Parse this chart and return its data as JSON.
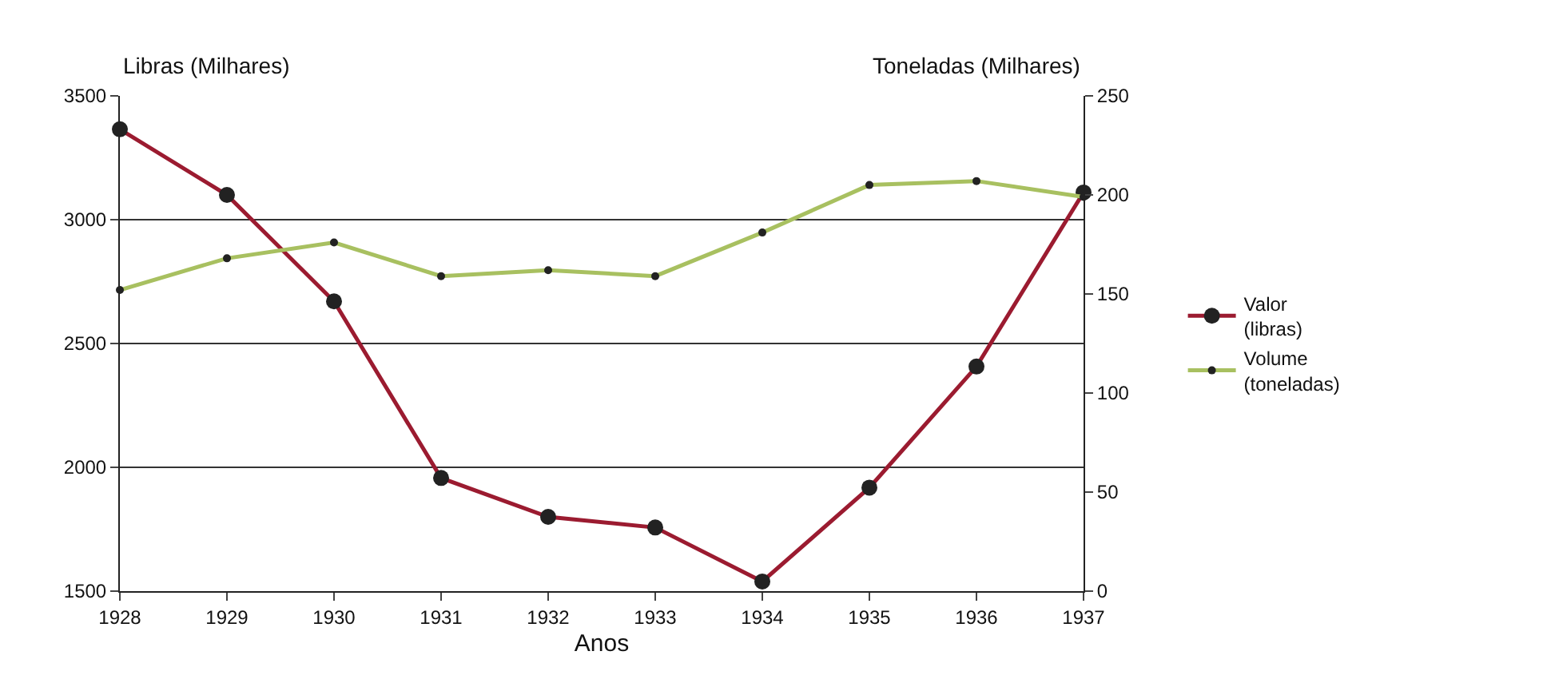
{
  "chart_data": {
    "type": "line",
    "xlabel": "Anos",
    "ylabel": "Libras (Milhares)",
    "y2label": "Toneladas (Milhares)",
    "x": [
      1928,
      1929,
      1930,
      1931,
      1932,
      1933,
      1934,
      1935,
      1936,
      1937
    ],
    "xlim": [
      1928,
      1937
    ],
    "xticks": [
      1928,
      1929,
      1930,
      1931,
      1932,
      1933,
      1934,
      1935,
      1936,
      1937
    ],
    "ylim": [
      1500,
      3500
    ],
    "yticks": [
      1500,
      2000,
      2500,
      3000,
      3500
    ],
    "y2lim": [
      0,
      250
    ],
    "y2ticks": [
      0,
      50,
      100,
      150,
      200,
      250
    ],
    "series": [
      {
        "name": "Valor\n(libras)",
        "color": "#9b1b30",
        "values": [
          3365,
          3100,
          2670,
          1957,
          1800,
          1757,
          1539,
          1918,
          2407,
          3110
        ]
      },
      {
        "name": "Volume\n(toneladas)",
        "color": "#a8c060",
        "axis": "y2",
        "values": [
          152,
          168,
          176,
          159,
          162,
          159,
          181,
          205,
          207,
          199
        ]
      }
    ],
    "grid": "y",
    "legend": "right",
    "marker": "circle",
    "line_style": "solid"
  }
}
